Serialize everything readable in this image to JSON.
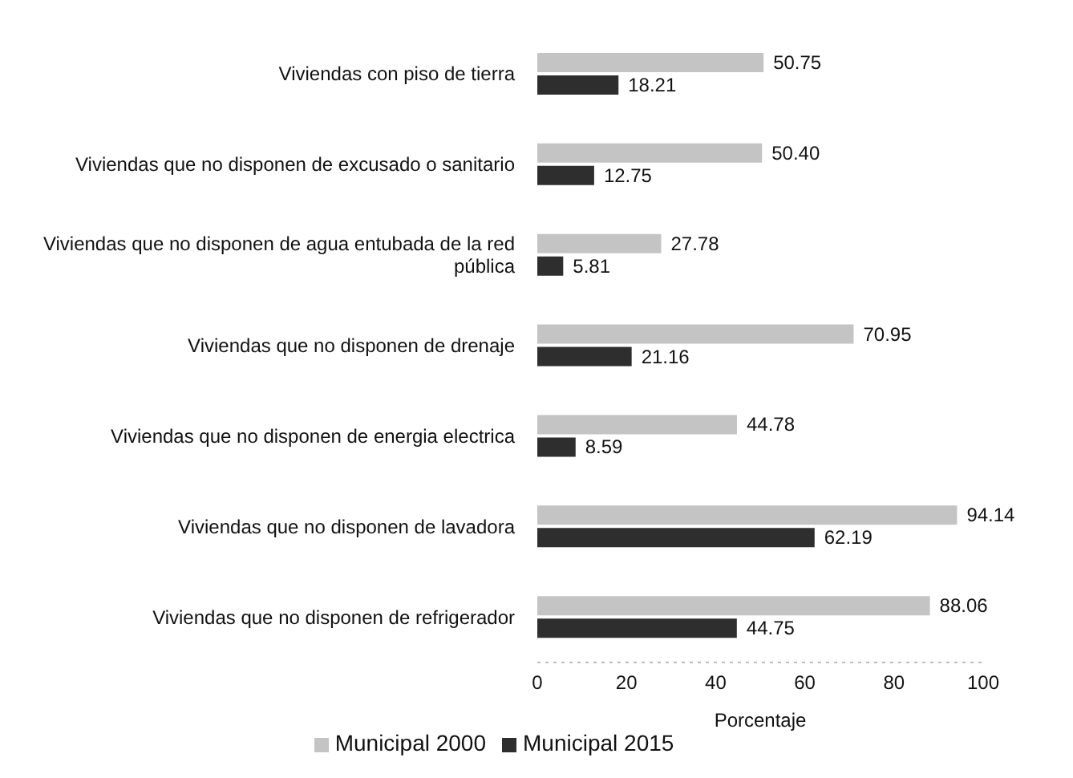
{
  "chart_data": {
    "type": "bar",
    "orientation": "horizontal",
    "xlabel": "Porcentaje",
    "categories": [
      "Viviendas con piso de tierra",
      "Viviendas que no disponen de excusado o sanitario",
      "Viviendas que no disponen de agua entubada de la red pública",
      "Viviendas que no disponen de drenaje",
      "Viviendas que no disponen de energia electrica",
      "Viviendas que no disponen de lavadora",
      "Viviendas que no disponen de refrigerador"
    ],
    "series": [
      {
        "name": "Municipal 2000",
        "color": "#c4c4c4",
        "values": [
          50.75,
          50.4,
          27.78,
          70.95,
          44.78,
          94.14,
          88.06
        ],
        "value_labels": [
          "50.75",
          "50.40",
          "27.78",
          "70.95",
          "44.78",
          "94.14",
          "88.06"
        ]
      },
      {
        "name": "Municipal 2015",
        "color": "#2e2e2e",
        "values": [
          18.21,
          12.75,
          5.81,
          21.16,
          8.59,
          62.19,
          44.75
        ],
        "value_labels": [
          "18.21",
          "12.75",
          "5.81",
          "21.16",
          "8.59",
          "62.19",
          "44.75"
        ]
      }
    ],
    "xlim": [
      0,
      100
    ],
    "xticks": [
      0,
      20,
      40,
      60,
      80,
      100
    ],
    "grid": false,
    "legend": "bottom"
  }
}
